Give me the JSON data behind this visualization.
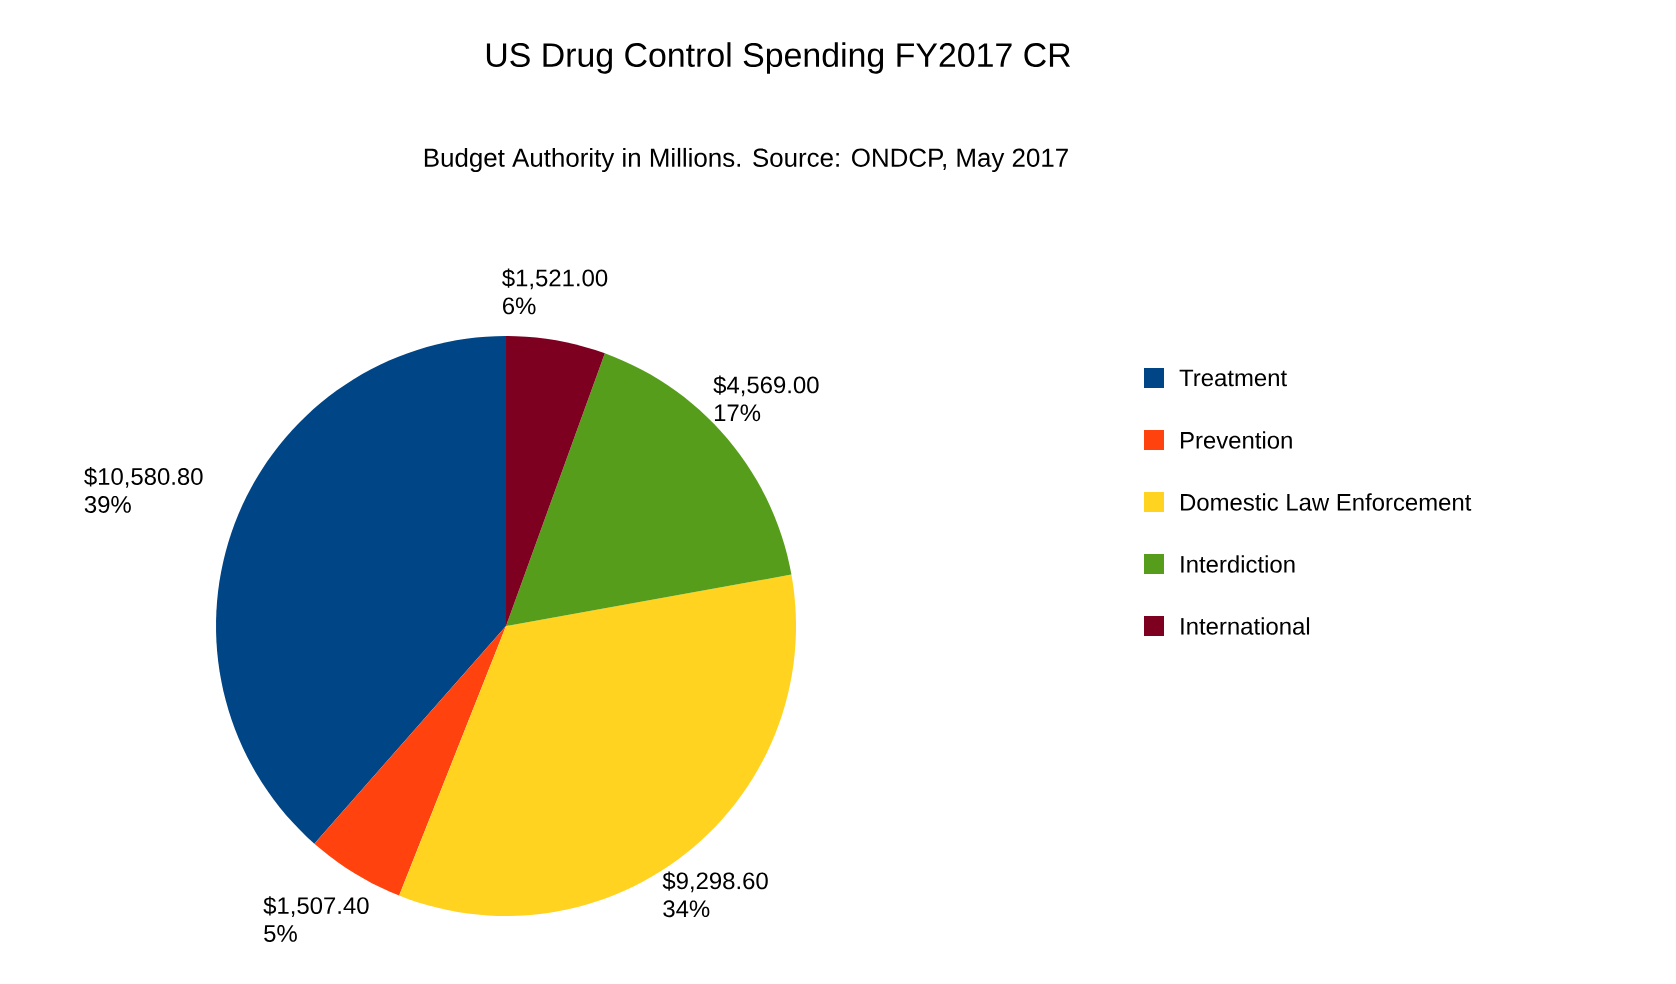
{
  "chart_data": {
    "type": "pie",
    "title": "US Drug Control Spending FY2017 CR",
    "subtitle": "Budget Authority in Millions. Source: ONDCP, May 2017",
    "categories": [
      "Treatment",
      "Prevention",
      "Domestic Law Enforcement",
      "Interdiction",
      "International"
    ],
    "values": [
      10580.8,
      1507.4,
      9298.6,
      4569.0,
      1521.0
    ],
    "colors": [
      "#004586",
      "#ff420e",
      "#ffd320",
      "#579d1c",
      "#7e0021"
    ],
    "value_labels": [
      "$10,580.80 39%",
      "$1,507.40 5%",
      "$9,298.60 34%",
      "$4,569.00 17%",
      "$1,521.00 6%"
    ],
    "legend": "right"
  }
}
